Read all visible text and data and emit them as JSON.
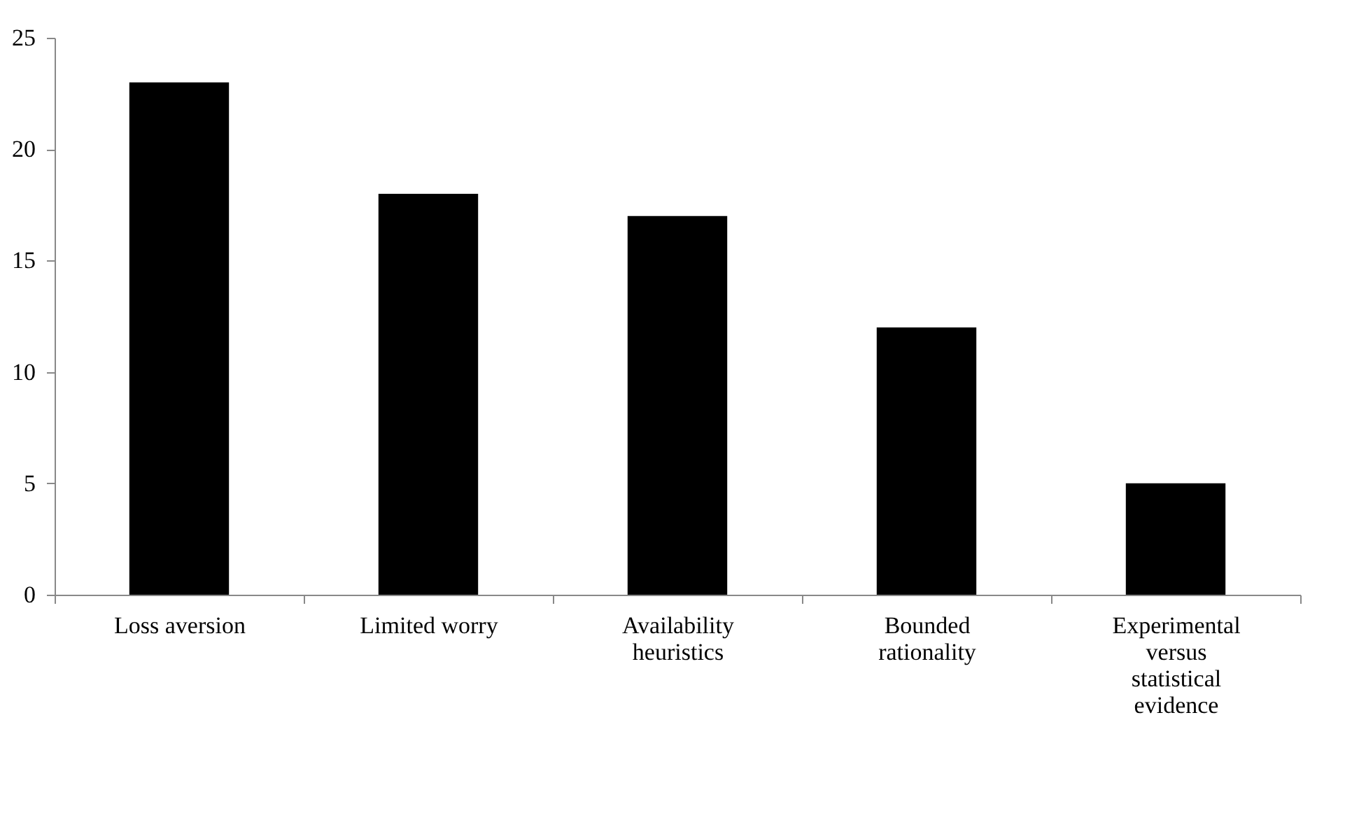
{
  "chart_data": {
    "type": "bar",
    "categories": [
      "Loss aversion",
      "Limited worry",
      "Availability heuristics",
      "Bounded rationality",
      "Experimental versus statistical evidence"
    ],
    "values": [
      23,
      18,
      17,
      12,
      5
    ],
    "color": "#000000",
    "ylim": [
      0,
      25
    ],
    "yticks": [
      0,
      5,
      10,
      15,
      20,
      25
    ],
    "grid": false
  }
}
